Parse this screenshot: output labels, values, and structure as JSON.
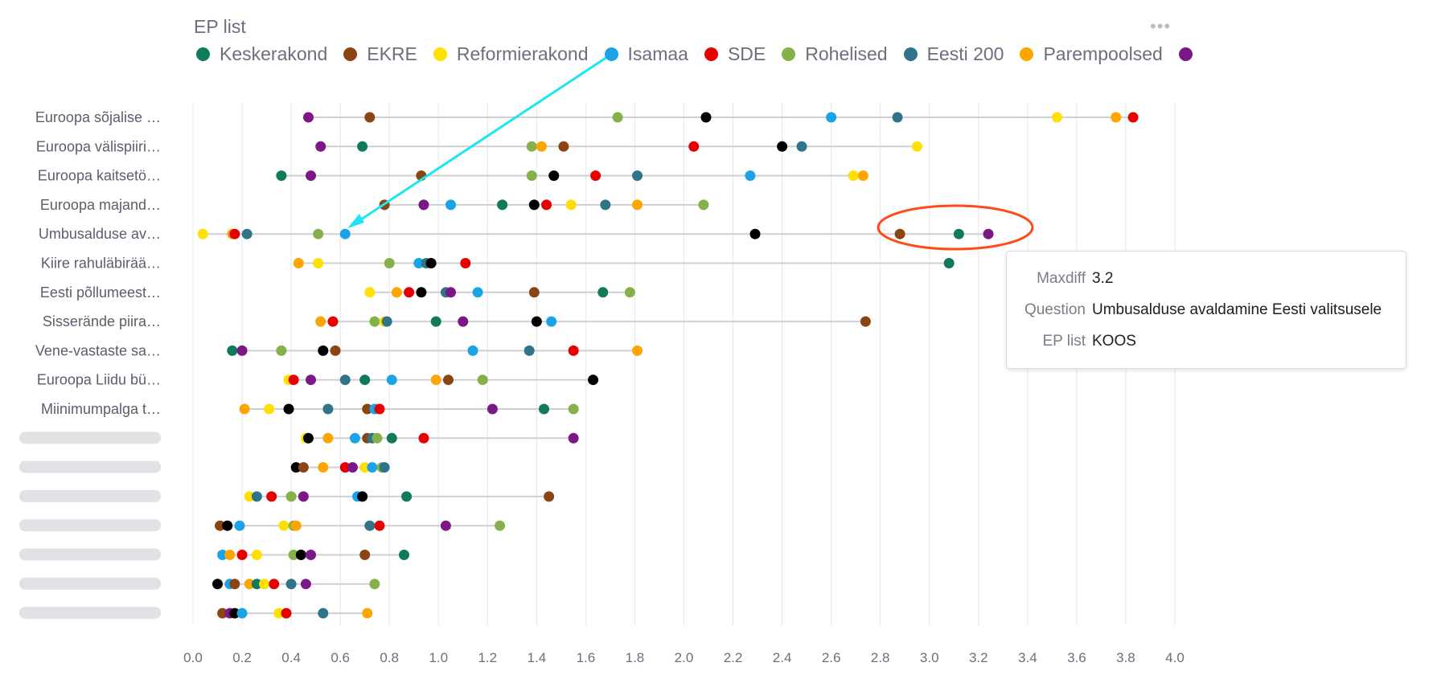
{
  "legend": {
    "title": "EP list",
    "items": [
      {
        "name": "Keskerakond",
        "color": "#0f7a5c"
      },
      {
        "name": "EKRE",
        "color": "#8b4513"
      },
      {
        "name": "Reformierakond",
        "color": "#ffe000"
      },
      {
        "name": "Isamaa",
        "color": "#1aa3e6"
      },
      {
        "name": "SDE",
        "color": "#e60000"
      },
      {
        "name": "Rohelised",
        "color": "#86b04a"
      },
      {
        "name": "Eesti 200",
        "color": "#2f7489"
      },
      {
        "name": "Parempoolsed",
        "color": "#ffa500"
      },
      {
        "name": "",
        "color": "#7b1787"
      }
    ]
  },
  "menu_icon": "more-horizontal-icon",
  "tooltip": {
    "rows": [
      {
        "key": "Maxdiff",
        "value": "3.2"
      },
      {
        "key": "Question",
        "value": "Umbusalduse avaldamine Eesti valitsusele"
      },
      {
        "key": "EP list",
        "value": "KOOS"
      }
    ]
  },
  "annotations": {
    "arrow_color": "#1ee6f0",
    "ellipse_color": "#ff4a1c"
  },
  "chart_data": {
    "type": "scatter",
    "xlim": [
      0,
      4.0
    ],
    "xticks": [
      "0.0",
      "0.2",
      "0.4",
      "0.6",
      "0.8",
      "1.0",
      "1.2",
      "1.4",
      "1.6",
      "1.8",
      "2.0",
      "2.2",
      "2.4",
      "2.6",
      "2.8",
      "3.0",
      "3.2",
      "3.4",
      "3.6",
      "3.8",
      "4.0"
    ],
    "grid": true,
    "extra_colors": {
      "black": "#000000"
    },
    "rows": [
      {
        "label": "Euroopa sõjalise …",
        "points": [
          [
            0.47,
            "#7b1787"
          ],
          [
            0.72,
            "#8b4513"
          ],
          [
            1.73,
            "#86b04a"
          ],
          [
            2.09,
            "#000000"
          ],
          [
            2.6,
            "#1aa3e6"
          ],
          [
            2.87,
            "#2f7489"
          ],
          [
            3.52,
            "#ffe000"
          ],
          [
            3.76,
            "#ffa500"
          ],
          [
            3.83,
            "#e60000"
          ]
        ]
      },
      {
        "label": "Euroopa välispiiri…",
        "points": [
          [
            0.52,
            "#7b1787"
          ],
          [
            0.69,
            "#0f7a5c"
          ],
          [
            1.38,
            "#86b04a"
          ],
          [
            1.42,
            "#ffa500"
          ],
          [
            1.51,
            "#8b4513"
          ],
          [
            2.04,
            "#e60000"
          ],
          [
            2.4,
            "#000000"
          ],
          [
            2.48,
            "#2f7489"
          ],
          [
            2.95,
            "#ffe000"
          ]
        ]
      },
      {
        "label": "Euroopa kaitsetö…",
        "points": [
          [
            0.36,
            "#0f7a5c"
          ],
          [
            0.48,
            "#7b1787"
          ],
          [
            0.93,
            "#8b4513"
          ],
          [
            1.38,
            "#86b04a"
          ],
          [
            1.47,
            "#000000"
          ],
          [
            1.64,
            "#e60000"
          ],
          [
            1.81,
            "#2f7489"
          ],
          [
            2.27,
            "#1aa3e6"
          ],
          [
            2.69,
            "#ffe000"
          ],
          [
            2.73,
            "#ffa500"
          ]
        ]
      },
      {
        "label": "Euroopa majand…",
        "points": [
          [
            0.78,
            "#8b4513"
          ],
          [
            0.94,
            "#7b1787"
          ],
          [
            1.05,
            "#1aa3e6"
          ],
          [
            1.26,
            "#0f7a5c"
          ],
          [
            1.39,
            "#000000"
          ],
          [
            1.44,
            "#e60000"
          ],
          [
            1.54,
            "#ffe000"
          ],
          [
            1.68,
            "#2f7489"
          ],
          [
            1.81,
            "#ffa500"
          ],
          [
            2.08,
            "#86b04a"
          ]
        ]
      },
      {
        "label": "Umbusalduse av…",
        "points": [
          [
            0.04,
            "#ffe000"
          ],
          [
            0.16,
            "#ffa500"
          ],
          [
            0.17,
            "#e60000"
          ],
          [
            0.22,
            "#2f7489"
          ],
          [
            0.51,
            "#86b04a"
          ],
          [
            0.62,
            "#1aa3e6"
          ],
          [
            2.29,
            "#000000"
          ],
          [
            2.88,
            "#8b4513"
          ],
          [
            3.12,
            "#0f7a5c"
          ],
          [
            3.24,
            "#7b1787"
          ]
        ]
      },
      {
        "label": "Kiire rahuläbirää…",
        "points": [
          [
            0.43,
            "#ffa500"
          ],
          [
            0.51,
            "#ffe000"
          ],
          [
            0.8,
            "#86b04a"
          ],
          [
            0.92,
            "#1aa3e6"
          ],
          [
            0.95,
            "#2f7489"
          ],
          [
            0.97,
            "#000000"
          ],
          [
            1.11,
            "#e60000"
          ],
          [
            3.08,
            "#0f7a5c"
          ]
        ]
      },
      {
        "label": "Eesti põllumeest…",
        "points": [
          [
            0.72,
            "#ffe000"
          ],
          [
            0.83,
            "#ffa500"
          ],
          [
            0.88,
            "#e60000"
          ],
          [
            0.93,
            "#000000"
          ],
          [
            1.03,
            "#2f7489"
          ],
          [
            1.05,
            "#7b1787"
          ],
          [
            1.16,
            "#1aa3e6"
          ],
          [
            1.39,
            "#8b4513"
          ],
          [
            1.67,
            "#0f7a5c"
          ],
          [
            1.78,
            "#86b04a"
          ]
        ]
      },
      {
        "label": "Sisserände piira…",
        "points": [
          [
            0.52,
            "#ffa500"
          ],
          [
            0.57,
            "#e60000"
          ],
          [
            0.74,
            "#86b04a"
          ],
          [
            0.78,
            "#ffe000"
          ],
          [
            0.79,
            "#2f7489"
          ],
          [
            0.99,
            "#0f7a5c"
          ],
          [
            1.1,
            "#7b1787"
          ],
          [
            1.4,
            "#000000"
          ],
          [
            1.46,
            "#1aa3e6"
          ],
          [
            2.74,
            "#8b4513"
          ]
        ]
      },
      {
        "label": "Vene-vastaste sa…",
        "points": [
          [
            0.16,
            "#0f7a5c"
          ],
          [
            0.2,
            "#7b1787"
          ],
          [
            0.36,
            "#86b04a"
          ],
          [
            0.53,
            "#000000"
          ],
          [
            0.58,
            "#8b4513"
          ],
          [
            1.14,
            "#1aa3e6"
          ],
          [
            1.37,
            "#2f7489"
          ],
          [
            1.55,
            "#e60000"
          ],
          [
            1.81,
            "#ffa500"
          ]
        ]
      },
      {
        "label": "Euroopa Liidu bü…",
        "points": [
          [
            0.39,
            "#ffe000"
          ],
          [
            0.41,
            "#e60000"
          ],
          [
            0.48,
            "#7b1787"
          ],
          [
            0.62,
            "#2f7489"
          ],
          [
            0.7,
            "#0f7a5c"
          ],
          [
            0.81,
            "#1aa3e6"
          ],
          [
            0.99,
            "#ffa500"
          ],
          [
            1.04,
            "#8b4513"
          ],
          [
            1.18,
            "#86b04a"
          ],
          [
            1.63,
            "#000000"
          ]
        ]
      },
      {
        "label": "Miinimumpalga t…",
        "points": [
          [
            0.21,
            "#ffa500"
          ],
          [
            0.31,
            "#ffe000"
          ],
          [
            0.39,
            "#000000"
          ],
          [
            0.55,
            "#2f7489"
          ],
          [
            0.71,
            "#8b4513"
          ],
          [
            0.74,
            "#1aa3e6"
          ],
          [
            0.76,
            "#e60000"
          ],
          [
            1.22,
            "#7b1787"
          ],
          [
            1.43,
            "#0f7a5c"
          ],
          [
            1.55,
            "#86b04a"
          ]
        ]
      },
      {
        "label": "",
        "points": [
          [
            0.46,
            "#ffe000"
          ],
          [
            0.47,
            "#000000"
          ],
          [
            0.55,
            "#ffa500"
          ],
          [
            0.66,
            "#1aa3e6"
          ],
          [
            0.71,
            "#8b4513"
          ],
          [
            0.73,
            "#2f7489"
          ],
          [
            0.75,
            "#86b04a"
          ],
          [
            0.81,
            "#0f7a5c"
          ],
          [
            0.94,
            "#e60000"
          ],
          [
            1.55,
            "#7b1787"
          ]
        ]
      },
      {
        "label": "",
        "points": [
          [
            0.42,
            "#000000"
          ],
          [
            0.45,
            "#8b4513"
          ],
          [
            0.53,
            "#ffa500"
          ],
          [
            0.62,
            "#e60000"
          ],
          [
            0.65,
            "#7b1787"
          ],
          [
            0.7,
            "#ffe000"
          ],
          [
            0.73,
            "#1aa3e6"
          ],
          [
            0.77,
            "#86b04a"
          ],
          [
            0.78,
            "#2f7489"
          ]
        ]
      },
      {
        "label": "",
        "points": [
          [
            0.23,
            "#ffe000"
          ],
          [
            0.26,
            "#2f7489"
          ],
          [
            0.32,
            "#e60000"
          ],
          [
            0.4,
            "#86b04a"
          ],
          [
            0.45,
            "#7b1787"
          ],
          [
            0.67,
            "#1aa3e6"
          ],
          [
            0.69,
            "#000000"
          ],
          [
            0.87,
            "#0f7a5c"
          ],
          [
            1.45,
            "#8b4513"
          ]
        ]
      },
      {
        "label": "",
        "points": [
          [
            0.11,
            "#8b4513"
          ],
          [
            0.14,
            "#000000"
          ],
          [
            0.19,
            "#1aa3e6"
          ],
          [
            0.37,
            "#ffe000"
          ],
          [
            0.41,
            "#86b04a"
          ],
          [
            0.42,
            "#ffa500"
          ],
          [
            0.72,
            "#2f7489"
          ],
          [
            0.76,
            "#e60000"
          ],
          [
            1.03,
            "#7b1787"
          ],
          [
            1.25,
            "#86b04a"
          ]
        ]
      },
      {
        "label": "",
        "points": [
          [
            0.12,
            "#1aa3e6"
          ],
          [
            0.15,
            "#ffa500"
          ],
          [
            0.2,
            "#e60000"
          ],
          [
            0.26,
            "#ffe000"
          ],
          [
            0.41,
            "#86b04a"
          ],
          [
            0.44,
            "#000000"
          ],
          [
            0.48,
            "#7b1787"
          ],
          [
            0.7,
            "#8b4513"
          ],
          [
            0.86,
            "#0f7a5c"
          ]
        ]
      },
      {
        "label": "",
        "points": [
          [
            0.1,
            "#000000"
          ],
          [
            0.15,
            "#1aa3e6"
          ],
          [
            0.17,
            "#8b4513"
          ],
          [
            0.23,
            "#ffa500"
          ],
          [
            0.26,
            "#0f7a5c"
          ],
          [
            0.29,
            "#ffe000"
          ],
          [
            0.33,
            "#e60000"
          ],
          [
            0.4,
            "#2f7489"
          ],
          [
            0.46,
            "#7b1787"
          ],
          [
            0.74,
            "#86b04a"
          ]
        ]
      },
      {
        "label": "",
        "points": [
          [
            0.12,
            "#8b4513"
          ],
          [
            0.15,
            "#7b1787"
          ],
          [
            0.17,
            "#000000"
          ],
          [
            0.2,
            "#1aa3e6"
          ],
          [
            0.35,
            "#ffe000"
          ],
          [
            0.38,
            "#e60000"
          ],
          [
            0.53,
            "#2f7489"
          ],
          [
            0.71,
            "#ffa500"
          ]
        ]
      }
    ]
  }
}
